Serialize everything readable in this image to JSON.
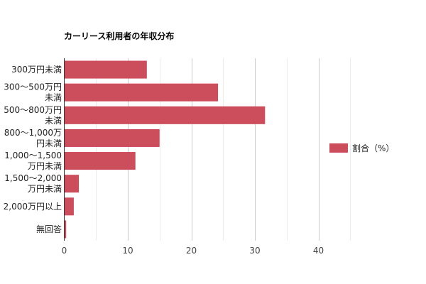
{
  "chart_data": {
    "type": "bar",
    "orientation": "horizontal",
    "title": "カーリース利用者の年収分布",
    "categories": [
      [
        "300万円未満"
      ],
      [
        "300〜500万円",
        "未満"
      ],
      [
        "500〜800万円",
        "未満"
      ],
      [
        "800〜1,000万",
        "円未満"
      ],
      [
        "1,000〜1,500",
        "万円未満"
      ],
      [
        "1,500〜2,000",
        "万円未満"
      ],
      [
        "2,000万円以上"
      ],
      [
        "無回答"
      ]
    ],
    "series": [
      {
        "name": "割合（%）",
        "color": "#cc4d5c",
        "values": [
          13.0,
          24.2,
          31.6,
          15.0,
          11.2,
          2.3,
          1.5,
          0.3
        ]
      }
    ],
    "xlim": [
      0,
      50
    ],
    "xticks": [
      0,
      10,
      20,
      30,
      40
    ],
    "minor_xticks": [
      5,
      15,
      25,
      35,
      45
    ],
    "grid": true,
    "legend_position": "right"
  }
}
